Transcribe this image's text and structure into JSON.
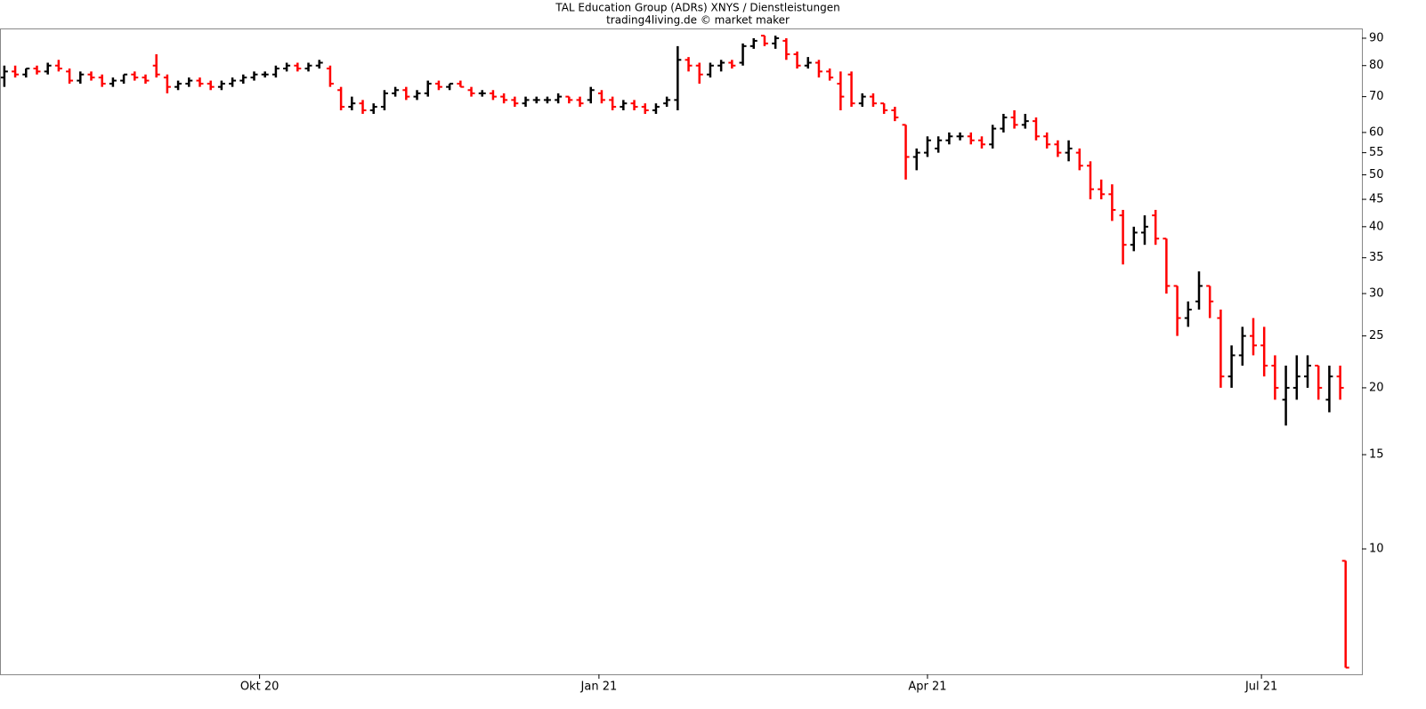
{
  "chart_data": {
    "type": "ohlc",
    "title": "TAL Education Group (ADRs) XNYS / Dienstleistungen",
    "subtitle": "trading4living.de © market maker",
    "up_color": "#000000",
    "down_color": "#ff0000",
    "log_scale": true,
    "x": [
      0,
      2,
      4,
      6,
      8,
      10,
      12,
      14,
      16,
      18,
      20,
      22,
      24,
      26,
      28,
      30,
      32,
      34,
      36,
      38,
      40,
      42,
      44,
      46,
      48,
      50,
      52,
      54,
      56,
      58,
      60,
      62,
      64,
      66,
      68,
      70,
      72,
      74,
      76,
      78,
      80,
      82,
      84,
      86,
      88,
      90,
      92,
      94,
      96,
      98,
      100,
      102,
      104,
      106,
      108,
      110,
      112,
      114,
      116,
      118,
      120,
      122,
      124,
      126,
      128,
      130,
      132,
      134,
      136,
      138,
      140,
      142,
      144,
      146,
      148,
      150,
      152,
      154,
      156,
      158,
      160,
      162,
      164,
      166,
      168,
      170,
      172,
      174,
      176,
      178,
      180,
      182,
      184,
      186,
      188,
      190,
      192,
      194,
      196,
      198,
      200,
      202,
      204,
      206,
      208,
      210,
      212,
      214,
      216,
      218,
      220,
      222,
      224,
      226,
      228,
      230,
      232,
      234,
      236,
      238,
      240,
      242,
      244,
      246,
      247
    ],
    "open": [
      76,
      78,
      77,
      79,
      78,
      80,
      78,
      75,
      77,
      76,
      74,
      75,
      77,
      76,
      80,
      76,
      73,
      74,
      75,
      74,
      73,
      74,
      75,
      76,
      77,
      77,
      79,
      80,
      79,
      80,
      79,
      72,
      67,
      68,
      66,
      67,
      71,
      72,
      70,
      71,
      74,
      73,
      74,
      72,
      71,
      71,
      70,
      69,
      68,
      69,
      69,
      69,
      70,
      69,
      69,
      71,
      69,
      67,
      68,
      67,
      66,
      68,
      69,
      82,
      80,
      77,
      80,
      81,
      81,
      87,
      91,
      88,
      89,
      84,
      80,
      81,
      78,
      74,
      77,
      68,
      70,
      68,
      66,
      62,
      54,
      55,
      56,
      58,
      59,
      59,
      58,
      57,
      61,
      64,
      62,
      63,
      59,
      57,
      55,
      55,
      52,
      47,
      46,
      42,
      37,
      39,
      42,
      38,
      31,
      27,
      29,
      31,
      27,
      21,
      23,
      25,
      24,
      22,
      19,
      20,
      21,
      22,
      19,
      21,
      9.5
    ],
    "high": [
      80,
      80,
      79,
      80,
      81,
      82,
      79,
      78,
      78,
      77,
      76,
      77,
      78,
      77,
      84,
      77,
      75,
      76,
      76,
      75,
      75,
      76,
      77,
      78,
      78,
      80,
      81,
      81,
      81,
      82,
      80,
      73,
      70,
      69,
      68,
      72,
      73,
      73,
      72,
      75,
      75,
      74,
      75,
      73,
      72,
      72,
      71,
      70,
      70,
      70,
      70,
      71,
      70,
      70,
      73,
      72,
      70,
      69,
      69,
      68,
      68,
      70,
      87,
      83,
      81,
      81,
      82,
      82,
      88,
      90,
      91,
      91,
      90,
      85,
      83,
      82,
      79,
      78,
      78,
      71,
      71,
      68,
      67,
      62,
      56,
      59,
      59,
      60,
      60,
      60,
      59,
      62,
      65,
      66,
      65,
      64,
      60,
      58,
      58,
      56,
      53,
      49,
      48,
      43,
      40,
      42,
      43,
      38,
      31,
      29,
      33,
      31,
      28,
      24,
      26,
      27,
      26,
      23,
      22,
      23,
      23,
      22,
      22,
      22,
      9.5
    ],
    "low": [
      73,
      76,
      76,
      77,
      77,
      78,
      74,
      74,
      75,
      73,
      73,
      74,
      75,
      74,
      76,
      71,
      72,
      73,
      73,
      72,
      72,
      73,
      74,
      75,
      76,
      76,
      78,
      78,
      78,
      79,
      73,
      66,
      66,
      65,
      65,
      66,
      70,
      69,
      69,
      70,
      72,
      72,
      73,
      70,
      70,
      69,
      68,
      67,
      67,
      68,
      68,
      68,
      68,
      67,
      68,
      68,
      66,
      66,
      66,
      65,
      65,
      67,
      66,
      78,
      74,
      76,
      78,
      79,
      80,
      86,
      87,
      86,
      82,
      79,
      79,
      76,
      75,
      66,
      67,
      67,
      67,
      65,
      63,
      49,
      51,
      54,
      55,
      57,
      58,
      57,
      56,
      56,
      60,
      61,
      61,
      58,
      56,
      54,
      53,
      51,
      45,
      45,
      41,
      34,
      36,
      37,
      37,
      30,
      25,
      26,
      28,
      27,
      20,
      20,
      22,
      23,
      21,
      19,
      17,
      19,
      20,
      19,
      18,
      19,
      6
    ],
    "close": [
      78,
      77,
      79,
      78,
      80,
      79,
      75,
      77,
      76,
      74,
      75,
      77,
      76,
      75,
      77,
      73,
      74,
      75,
      74,
      73,
      74,
      75,
      76,
      77,
      77,
      79,
      80,
      79,
      80,
      81,
      74,
      67,
      68,
      66,
      67,
      71,
      72,
      70,
      71,
      74,
      73,
      74,
      73,
      71,
      71,
      70,
      69,
      68,
      69,
      69,
      69,
      70,
      69,
      68,
      72,
      69,
      67,
      68,
      67,
      66,
      67,
      69,
      82,
      80,
      77,
      80,
      81,
      80,
      87,
      89,
      88,
      90,
      84,
      80,
      81,
      78,
      76,
      70,
      68,
      70,
      68,
      66,
      64,
      54,
      55,
      58,
      58,
      59,
      59,
      58,
      57,
      61,
      64,
      62,
      63,
      59,
      57,
      55,
      56,
      52,
      47,
      46,
      43,
      37,
      39,
      40,
      38,
      31,
      27,
      28,
      31,
      29,
      21,
      23,
      25,
      24,
      22,
      20,
      20,
      21,
      22,
      20,
      21,
      20,
      6
    ],
    "xlim": [
      -0.8,
      250
    ],
    "ylim": [
      5.83,
      93.5
    ],
    "xticks": [
      {
        "value": 47,
        "label": "Okt 20"
      },
      {
        "value": 109.5,
        "label": "Jan 21"
      },
      {
        "value": 170,
        "label": "Apr 21"
      },
      {
        "value": 231.5,
        "label": "Jul 21"
      }
    ],
    "yticks": [
      10,
      15,
      20,
      25,
      30,
      35,
      40,
      45,
      50,
      55,
      60,
      70,
      80,
      90
    ]
  }
}
